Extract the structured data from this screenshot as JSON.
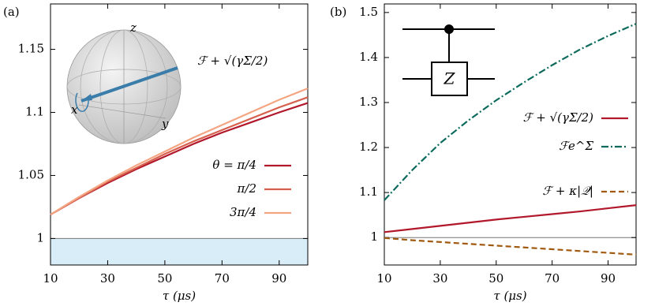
{
  "chart_data": [
    {
      "type": "line",
      "panel": "(a)",
      "xlabel": "τ (μs)",
      "xlim": [
        10,
        100
      ],
      "xticks": [
        10,
        30,
        50,
        70,
        90
      ],
      "ylim": [
        0.979,
        1.186
      ],
      "yticks": [
        1,
        1.05,
        1.1,
        1.15
      ],
      "hline": 1,
      "fill_below": "#d8edf7",
      "annotation": "ℱ + √(γΣ/2)",
      "bloch_labels": [
        "z",
        "x",
        "y"
      ],
      "x": [
        10,
        20,
        30,
        40,
        50,
        60,
        70,
        80,
        90,
        100
      ],
      "series": [
        {
          "name": "θ = π/4",
          "color": "#b2182b",
          "dash": "solid",
          "values": [
            1.019,
            1.032,
            1.044,
            1.055,
            1.065,
            1.075,
            1.084,
            1.092,
            1.1,
            1.1075
          ]
        },
        {
          "name": "π/2",
          "color": "#d6604d",
          "dash": "solid",
          "values": [
            1.019,
            1.032,
            1.045,
            1.056,
            1.067,
            1.077,
            1.086,
            1.095,
            1.104,
            1.112
          ]
        },
        {
          "name": "3π/4",
          "color": "#f4a582",
          "dash": "solid",
          "values": [
            1.019,
            1.033,
            1.046,
            1.058,
            1.069,
            1.08,
            1.09,
            1.1,
            1.11,
            1.119
          ]
        }
      ]
    },
    {
      "type": "line",
      "panel": "(b)",
      "xlabel": "τ (μs)",
      "xlim": [
        10,
        100
      ],
      "xticks": [
        10,
        30,
        50,
        70,
        90
      ],
      "ylim": [
        0.939,
        1.519
      ],
      "yticks": [
        1,
        1.1,
        1.2,
        1.3,
        1.4,
        1.5
      ],
      "hline": 1,
      "gate": "Z",
      "x": [
        10,
        20,
        30,
        40,
        50,
        60,
        70,
        80,
        90,
        100
      ],
      "series": [
        {
          "name": "ℱ + √(γΣ/2)",
          "color": "#b2182b",
          "dash": "solid",
          "values": [
            1.012,
            1.019,
            1.026,
            1.033,
            1.04,
            1.046,
            1.052,
            1.058,
            1.065,
            1.072
          ]
        },
        {
          "name": "ℱe^Σ",
          "color": "#0d6b5e",
          "dash": "dashdot",
          "values": [
            1.083,
            1.15,
            1.21,
            1.26,
            1.305,
            1.345,
            1.383,
            1.418,
            1.448,
            1.475
          ]
        },
        {
          "name": "ℱ + κ|𝒬|",
          "color": "#a0590f",
          "dash": "dashed",
          "values": [
            0.999,
            0.994,
            0.99,
            0.986,
            0.982,
            0.978,
            0.974,
            0.97,
            0.966,
            0.962
          ]
        }
      ]
    }
  ]
}
